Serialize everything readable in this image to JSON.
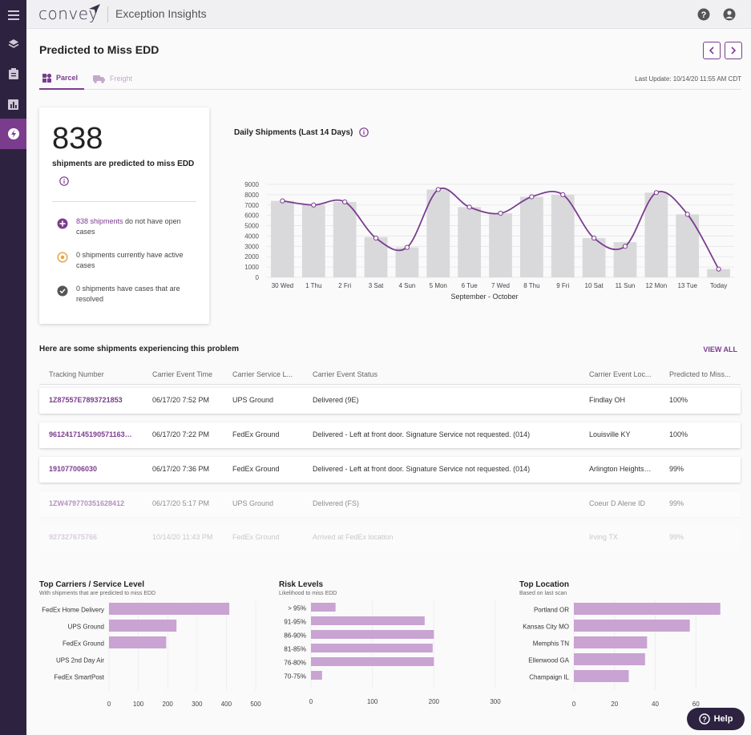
{
  "app": {
    "logo": "convey",
    "title": "Exception Insights"
  },
  "page": {
    "title": "Predicted to Miss EDD",
    "last_update": "Last Update: 10/14/20 11:55 AM CDT"
  },
  "tabs": [
    {
      "label": "Parcel",
      "active": true
    },
    {
      "label": "Freight",
      "active": false
    }
  ],
  "summary": {
    "count": "838",
    "subtitle": "shipments are predicted to miss EDD",
    "stats": [
      {
        "link": "838 shipments",
        "text": " do not have open cases",
        "icon": "plus-circle-icon",
        "color": "#7b3c8e"
      },
      {
        "link": "",
        "text": "0 shipments currently have active cases",
        "icon": "active-circle-icon",
        "color": "#e8a13a"
      },
      {
        "link": "",
        "text": "0 shipments have cases that are resolved",
        "icon": "check-circle-icon",
        "color": "#555555"
      }
    ]
  },
  "daily_chart_title": "Daily Shipments (Last 14 Days)",
  "chart_data": {
    "type": "bar",
    "title": "Daily Shipments (Last 14 Days)",
    "xlabel": "September - October",
    "categories": [
      "30 Wed",
      "1 Thu",
      "2 Fri",
      "3 Sat",
      "4 Sun",
      "5 Mon",
      "6 Tue",
      "7 Wed",
      "8 Thu",
      "9 Fri",
      "10 Sat",
      "11 Sun",
      "12 Mon",
      "13 Tue",
      "Today"
    ],
    "values": [
      7400,
      7000,
      7300,
      3900,
      2900,
      8500,
      6800,
      6200,
      7800,
      8000,
      3800,
      3400,
      8200,
      6100,
      800
    ],
    "line": [
      7400,
      7000,
      7300,
      3800,
      2900,
      8500,
      6800,
      6200,
      7800,
      8000,
      3800,
      3000,
      8200,
      6100,
      800
    ],
    "yticks": [
      0,
      1000,
      2000,
      3000,
      4000,
      5000,
      6000,
      7000,
      8000,
      9000
    ],
    "ylim": [
      0,
      9000
    ],
    "bar_color": "#d9d9db",
    "line_color": "#7b3c8e"
  },
  "table": {
    "section_title": "Here are some shipments experiencing this problem",
    "view_all": "VIEW ALL",
    "headers": [
      "Tracking Number",
      "Carrier Event Time",
      "Carrier Service L...",
      "Carrier Event Status",
      "Carrier Event Loc...",
      "Predicted to Miss..."
    ],
    "rows": [
      [
        "1Z87557E7893721853",
        "06/17/20 7:52 PM",
        "UPS Ground",
        "Delivered (9E)",
        "Findlay OH",
        "100%"
      ],
      [
        "9612417145190571163…",
        "06/17/20 7:22 PM",
        "FedEx Ground",
        "Delivered - Left at front door. Signature Service not requested. (014)",
        "Louisville KY",
        "100%"
      ],
      [
        "191077006030",
        "06/17/20 7:36 PM",
        "FedEx Ground",
        "Delivered - Left at front door. Signature Service not requested. (014)",
        "Arlington Heights…",
        "99%"
      ],
      [
        "1ZW479770351628412",
        "06/17/20 5:17 PM",
        "UPS Ground",
        "Delivered (FS)",
        "Coeur D Alene ID",
        "99%"
      ],
      [
        "927327675766",
        "10/14/20 11:43 PM",
        "FedEx Ground",
        "Arrived at FedEx location",
        "Irving TX",
        "99%"
      ]
    ]
  },
  "bottom": {
    "carriers": {
      "title": "Top Carriers / Service Level",
      "subtitle": "With shipments that are predicted to miss EDD",
      "chart_data": {
        "type": "bar",
        "categories": [
          "FedEx Home Delivery",
          "UPS Ground",
          "FedEx Ground",
          "UPS 2nd Day Air",
          "FedEx SmartPost"
        ],
        "values": [
          410,
          230,
          195,
          0,
          0
        ],
        "xticks": [
          0,
          100,
          200,
          300,
          400,
          500
        ],
        "xlim": [
          0,
          500
        ]
      }
    },
    "risk": {
      "title": "Risk Levels",
      "subtitle": "Likelihood to miss EDD",
      "chart_data": {
        "type": "bar",
        "categories": [
          "> 95%",
          "91-95%",
          "86-90%",
          "81-85%",
          "76-80%",
          "70-75%"
        ],
        "values": [
          40,
          185,
          200,
          198,
          200,
          18
        ],
        "xticks": [
          0,
          100,
          200,
          300
        ],
        "xlim": [
          0,
          300
        ]
      }
    },
    "location": {
      "title": "Top Location",
      "subtitle": "Based on last scan",
      "chart_data": {
        "type": "bar",
        "categories": [
          "Portland OR",
          "Kansas City MO",
          "Memphis TN",
          "Ellenwood GA",
          "Champaign IL"
        ],
        "values": [
          72,
          57,
          36,
          35,
          27
        ],
        "xticks": [
          0,
          20,
          40,
          60
        ],
        "xlim": [
          0,
          80
        ]
      }
    }
  },
  "help": {
    "label": "Help"
  }
}
